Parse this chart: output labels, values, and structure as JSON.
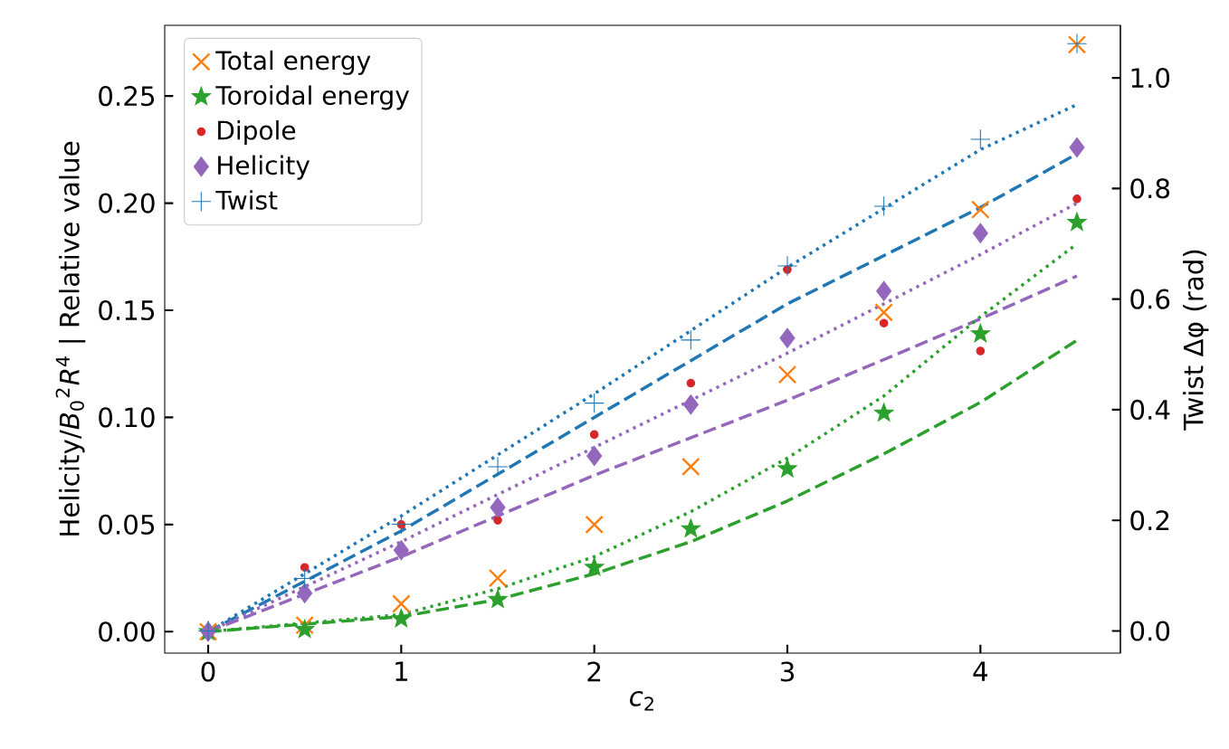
{
  "chart_data": {
    "type": "scatter",
    "xlabel": "*c*$_{2}$",
    "ylabel": "Helicity/*B*$_{0}$$^{2}$*R*$^{4}$ | Relative value",
    "y2label": "Twist Δφ (rad)",
    "x": [
      0,
      0.5,
      1,
      1.5,
      2,
      2.5,
      3,
      3.5,
      4,
      4.5
    ],
    "xlim": [
      -0.225,
      4.725
    ],
    "ylim": [
      -0.01,
      0.283
    ],
    "y2lim": [
      -0.04,
      1.095
    ],
    "xticks": [
      0,
      1,
      2,
      3,
      4
    ],
    "yticks": [
      {
        "value": 0,
        "label": "0.00"
      },
      {
        "value": 0.05,
        "label": "0.05"
      },
      {
        "value": 0.1,
        "label": "0.10"
      },
      {
        "value": 0.15,
        "label": "0.15"
      },
      {
        "value": 0.2,
        "label": "0.20"
      },
      {
        "value": 0.25,
        "label": "0.25"
      }
    ],
    "y2ticks": [
      {
        "value": 0,
        "label": "0.0"
      },
      {
        "value": 0.2,
        "label": "0.2"
      },
      {
        "value": 0.4,
        "label": "0.4"
      },
      {
        "value": 0.6,
        "label": "0.6"
      },
      {
        "value": 0.8,
        "label": "0.8"
      },
      {
        "value": 1,
        "label": "1.0"
      }
    ],
    "grid": false,
    "legend": "top left",
    "series": [
      {
        "name": "Total energy",
        "color": "#ff7f0e",
        "marker": "cross",
        "values": [
          0,
          0.003,
          0.013,
          0.025,
          0.05,
          0.077,
          0.12,
          0.149,
          0.197,
          0.274
        ]
      },
      {
        "name": "Toroidal energy",
        "color": "#2ca02c",
        "marker": "star",
        "values": [
          0,
          0.001,
          0.006,
          0.015,
          0.03,
          0.048,
          0.076,
          0.102,
          0.139,
          0.191
        ]
      },
      {
        "name": "Dipole",
        "color": "#d62728",
        "marker": "circle",
        "values": [
          null,
          0.03,
          0.05,
          0.052,
          0.092,
          0.116,
          0.169,
          0.144,
          0.131,
          0.202
        ]
      },
      {
        "name": "Helicity",
        "color": "#9467bd",
        "marker": "diamond",
        "values": [
          0,
          0.018,
          0.038,
          0.058,
          0.082,
          0.106,
          0.137,
          0.159,
          0.186,
          0.226
        ]
      },
      {
        "name": "Twist",
        "color": "#1f77b4",
        "marker": "plus",
        "axis": "y2",
        "values": [
          0,
          0.095,
          0.193,
          0.297,
          0.412,
          0.526,
          0.66,
          0.768,
          0.889,
          1.062
        ]
      },
      {
        "type": "line",
        "color": "#1f77b4",
        "line_style": "dotted",
        "x": [
          0,
          1,
          2,
          3,
          4,
          4.5
        ],
        "values": [
          0,
          0.054,
          0.111,
          0.17,
          0.225,
          0.246
        ]
      },
      {
        "type": "line",
        "color": "#1f77b4",
        "line_style": "dashed",
        "x": [
          0,
          1,
          2,
          3,
          4,
          4.5
        ],
        "values": [
          0,
          0.047,
          0.1,
          0.153,
          0.198,
          0.223
        ]
      },
      {
        "type": "line",
        "color": "#9467bd",
        "line_style": "dotted",
        "x": [
          0,
          1,
          2,
          3,
          4,
          4.5
        ],
        "values": [
          0,
          0.042,
          0.086,
          0.13,
          0.176,
          0.2
        ]
      },
      {
        "type": "line",
        "color": "#9467bd",
        "line_style": "dashed",
        "x": [
          0,
          1,
          2,
          3,
          4,
          4.5
        ],
        "values": [
          0,
          0.035,
          0.073,
          0.108,
          0.146,
          0.166
        ]
      },
      {
        "type": "line",
        "color": "#2ca02c",
        "line_style": "dotted",
        "x": [
          0,
          1,
          1.5,
          2,
          2.5,
          3,
          3.5,
          4,
          4.5
        ],
        "values": [
          0,
          0.008,
          0.02,
          0.035,
          0.056,
          0.081,
          0.11,
          0.147,
          0.181
        ]
      },
      {
        "type": "line",
        "color": "#2ca02c",
        "line_style": "dashed",
        "x": [
          0,
          1,
          1.5,
          2,
          2.5,
          3,
          3.5,
          4,
          4.5
        ],
        "values": [
          0,
          0.007,
          0.015,
          0.027,
          0.042,
          0.061,
          0.083,
          0.107,
          0.136
        ]
      }
    ]
  }
}
